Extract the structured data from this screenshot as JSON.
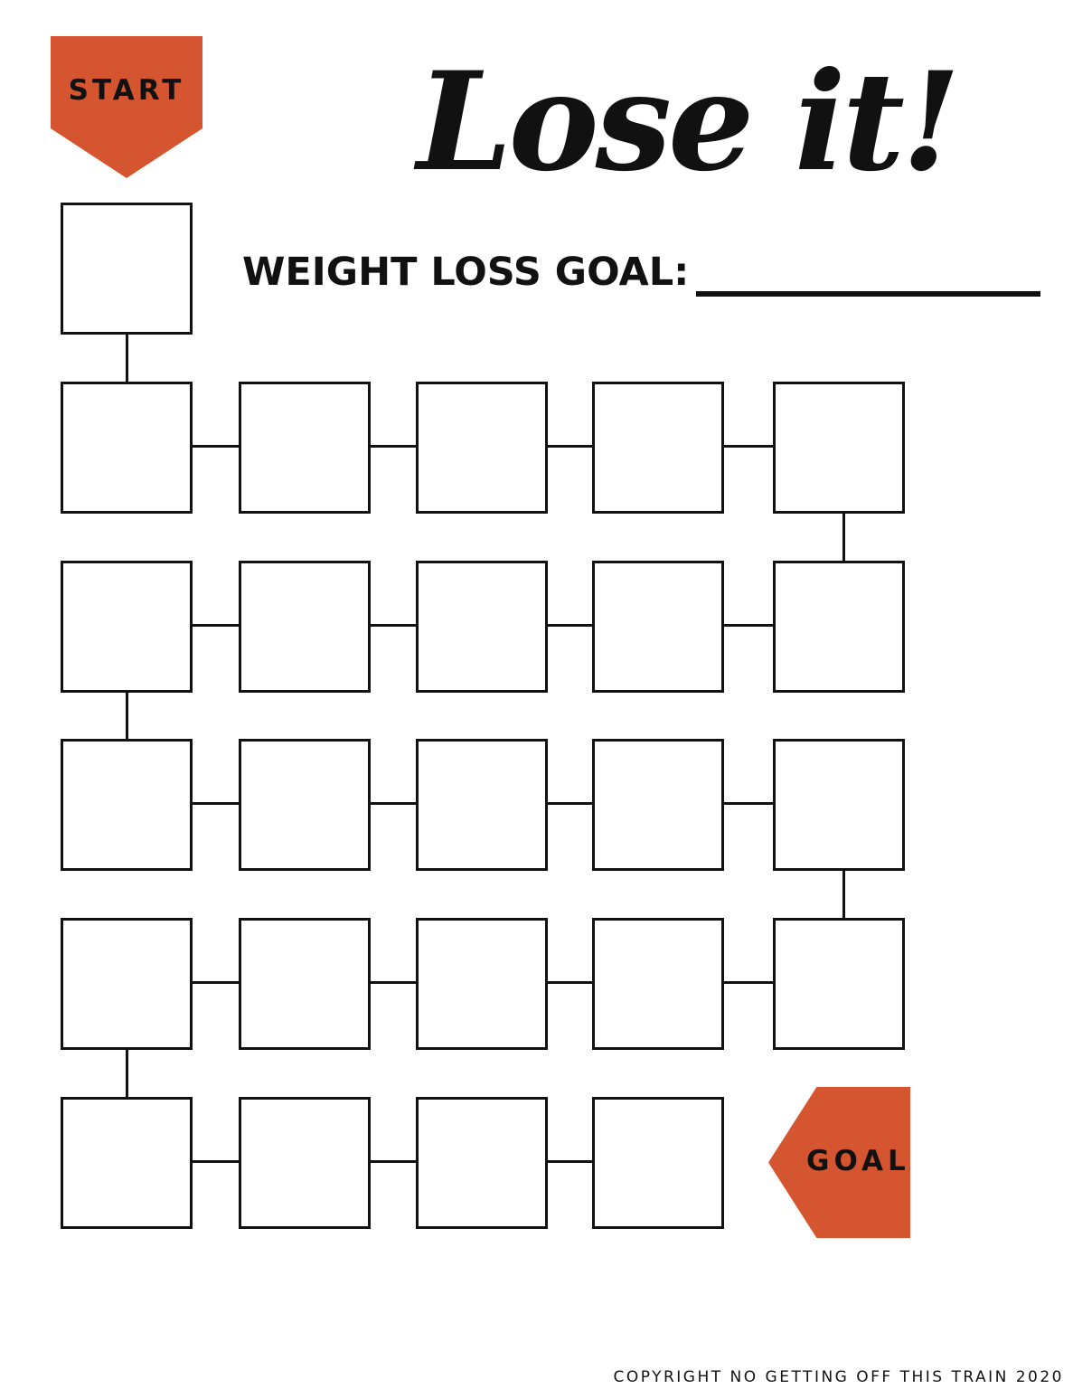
{
  "start_badge": {
    "label": "START",
    "color": "#D65531"
  },
  "goal_badge": {
    "label": "GOAL",
    "color": "#D65531"
  },
  "title": "Lose it!",
  "weight_loss_goal": {
    "label": "WEIGHT LOSS GOAL:",
    "value": ""
  },
  "tracker": {
    "rows": [
      1,
      5,
      5,
      5,
      5,
      4
    ]
  },
  "footer": {
    "copyright": "COPYRIGHT NO GETTING OFF THIS TRAIN 2020"
  }
}
